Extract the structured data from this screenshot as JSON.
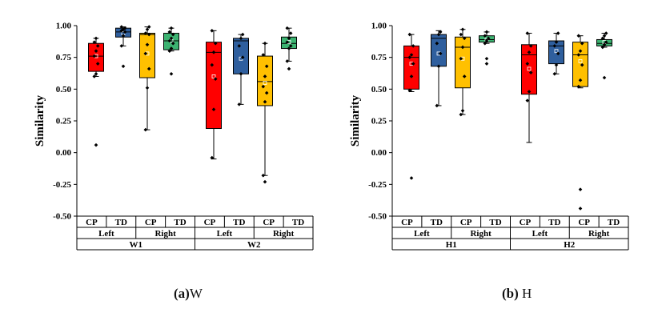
{
  "chart_data": [
    {
      "type": "box",
      "ylabel": "Similarity",
      "ylim": [
        -0.5,
        1.0
      ],
      "yticks": [
        1.0,
        0.75,
        0.5,
        0.25,
        0.0,
        -0.25,
        -0.5
      ],
      "ytick_labels": [
        "1.00",
        "0.75",
        "0.50",
        "0.25",
        "0.00",
        "-0.25",
        "-0.50"
      ],
      "caption_letter": "(a)",
      "caption_text": "W",
      "groups": [
        "W1",
        "W2"
      ],
      "sides": [
        "Left",
        "Right",
        "Left",
        "Right"
      ],
      "boxes": [
        {
          "group": "W1",
          "side": "Left",
          "condition": "CP",
          "color": "#ff0000",
          "min": 0.6,
          "q1": 0.64,
          "median": 0.76,
          "q3": 0.86,
          "max": 0.9,
          "mean": 0.76,
          "outliers": [
            0.06
          ],
          "points": [
            0.6,
            0.62,
            0.7,
            0.76,
            0.8,
            0.84,
            0.87,
            0.9
          ]
        },
        {
          "group": "W1",
          "side": "Left",
          "condition": "TD",
          "color": "#2f5f9e",
          "min": 0.84,
          "q1": 0.91,
          "median": 0.95,
          "q3": 0.98,
          "max": 0.99,
          "mean": 0.94,
          "outliers": [
            0.68
          ],
          "points": [
            0.84,
            0.92,
            0.95,
            0.96,
            0.97,
            0.98,
            0.99
          ]
        },
        {
          "group": "W1",
          "side": "Right",
          "condition": "CP",
          "color": "#ffc000",
          "min": 0.18,
          "q1": 0.59,
          "median": 0.93,
          "q3": 0.94,
          "max": 0.99,
          "mean": 0.78,
          "outliers": [],
          "points": [
            0.18,
            0.51,
            0.66,
            0.78,
            0.85,
            0.93,
            0.94,
            0.97,
            0.99
          ]
        },
        {
          "group": "W1",
          "side": "Right",
          "condition": "TD",
          "color": "#3cb371",
          "min": 0.8,
          "q1": 0.81,
          "median": 0.88,
          "q3": 0.94,
          "max": 0.98,
          "mean": 0.88,
          "outliers": [
            0.62
          ],
          "points": [
            0.8,
            0.82,
            0.86,
            0.88,
            0.9,
            0.93,
            0.95,
            0.98
          ]
        },
        {
          "group": "W2",
          "side": "Left",
          "condition": "CP",
          "color": "#ff0000",
          "min": -0.05,
          "q1": 0.19,
          "median": 0.79,
          "q3": 0.87,
          "max": 0.96,
          "mean": 0.6,
          "outliers": [],
          "points": [
            -0.04,
            0.34,
            0.58,
            0.69,
            0.79,
            0.86,
            0.96
          ]
        },
        {
          "group": "W2",
          "side": "Left",
          "condition": "TD",
          "color": "#2f5f9e",
          "min": 0.38,
          "q1": 0.62,
          "median": 0.88,
          "q3": 0.9,
          "max": 0.93,
          "mean": 0.74,
          "outliers": [],
          "points": [
            0.38,
            0.62,
            0.75,
            0.84,
            0.9,
            0.93
          ]
        },
        {
          "group": "W2",
          "side": "Right",
          "condition": "CP",
          "color": "#ffc000",
          "min": -0.18,
          "q1": 0.37,
          "median": 0.56,
          "q3": 0.76,
          "max": 0.86,
          "mean": 0.55,
          "outliers": [
            -0.23
          ],
          "points": [
            -0.18,
            0.4,
            0.47,
            0.52,
            0.6,
            0.68,
            0.77,
            0.86
          ]
        },
        {
          "group": "W2",
          "side": "Right",
          "condition": "TD",
          "color": "#3cb371",
          "min": 0.72,
          "q1": 0.82,
          "median": 0.86,
          "q3": 0.91,
          "max": 0.98,
          "mean": 0.87,
          "outliers": [
            0.66
          ],
          "points": [
            0.72,
            0.82,
            0.84,
            0.87,
            0.9,
            0.94,
            0.98
          ]
        }
      ]
    },
    {
      "type": "box",
      "ylabel": "Similarity",
      "ylim": [
        -0.5,
        1.0
      ],
      "yticks": [
        1.0,
        0.75,
        0.5,
        0.25,
        0.0,
        -0.25,
        -0.5
      ],
      "ytick_labels": [
        "1.00",
        "0.75",
        "0.50",
        "0.25",
        "0.00",
        "-0.25",
        "-0.50"
      ],
      "caption_letter": "(b)",
      "caption_text": " H",
      "groups": [
        "H1",
        "H2"
      ],
      "sides": [
        "Left",
        "Right",
        "Left",
        "Right"
      ],
      "boxes": [
        {
          "group": "H1",
          "side": "Left",
          "condition": "CP",
          "color": "#ff0000",
          "min": 0.48,
          "q1": 0.5,
          "median": 0.75,
          "q3": 0.84,
          "max": 0.93,
          "mean": 0.7,
          "outliers": [
            -0.2
          ],
          "points": [
            0.49,
            0.6,
            0.7,
            0.75,
            0.77,
            0.84,
            0.93
          ]
        },
        {
          "group": "H1",
          "side": "Left",
          "condition": "TD",
          "color": "#2f5f9e",
          "min": 0.37,
          "q1": 0.68,
          "median": 0.9,
          "q3": 0.93,
          "max": 0.96,
          "mean": 0.78,
          "outliers": [],
          "points": [
            0.37,
            0.68,
            0.78,
            0.86,
            0.93,
            0.95
          ]
        },
        {
          "group": "H1",
          "side": "Right",
          "condition": "CP",
          "color": "#ffc000",
          "min": 0.3,
          "q1": 0.51,
          "median": 0.83,
          "q3": 0.91,
          "max": 0.97,
          "mean": 0.74,
          "outliers": [],
          "points": [
            0.3,
            0.33,
            0.6,
            0.74,
            0.83,
            0.9,
            0.93,
            0.97
          ]
        },
        {
          "group": "H1",
          "side": "Right",
          "condition": "TD",
          "color": "#3cb371",
          "min": 0.86,
          "q1": 0.87,
          "median": 0.89,
          "q3": 0.92,
          "max": 0.95,
          "mean": 0.89,
          "outliers": [
            0.7,
            0.74
          ],
          "points": [
            0.86,
            0.88,
            0.9,
            0.92,
            0.95
          ]
        },
        {
          "group": "H2",
          "side": "Left",
          "condition": "CP",
          "color": "#ff0000",
          "min": 0.08,
          "q1": 0.46,
          "median": 0.77,
          "q3": 0.85,
          "max": 0.94,
          "mean": 0.66,
          "outliers": [],
          "points": [
            0.41,
            0.48,
            0.63,
            0.7,
            0.79,
            0.84,
            0.94
          ]
        },
        {
          "group": "H2",
          "side": "Left",
          "condition": "TD",
          "color": "#2f5f9e",
          "min": 0.62,
          "q1": 0.7,
          "median": 0.84,
          "q3": 0.88,
          "max": 0.94,
          "mean": 0.8,
          "outliers": [],
          "points": [
            0.62,
            0.69,
            0.78,
            0.84,
            0.87,
            0.94
          ]
        },
        {
          "group": "H2",
          "side": "Right",
          "condition": "CP",
          "color": "#ffc000",
          "min": 0.51,
          "q1": 0.52,
          "median": 0.77,
          "q3": 0.87,
          "max": 0.92,
          "mean": 0.72,
          "outliers": [
            -0.29,
            -0.44
          ],
          "points": [
            0.52,
            0.57,
            0.69,
            0.77,
            0.8,
            0.86,
            0.92
          ]
        },
        {
          "group": "H2",
          "side": "Right",
          "condition": "TD",
          "color": "#3cb371",
          "min": 0.83,
          "q1": 0.84,
          "median": 0.86,
          "q3": 0.89,
          "max": 0.94,
          "mean": 0.87,
          "outliers": [
            0.59
          ],
          "points": [
            0.83,
            0.85,
            0.87,
            0.9,
            0.92,
            0.94
          ]
        }
      ]
    }
  ]
}
